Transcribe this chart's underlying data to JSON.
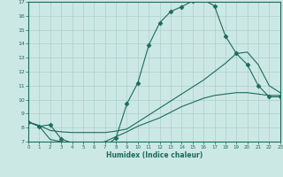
{
  "xlabel": "Humidex (Indice chaleur)",
  "bg_color": "#cce8e5",
  "grid_color": "#aacfcc",
  "line_color": "#1a6b5a",
  "x_min": 0,
  "x_max": 23,
  "y_min": 7,
  "y_max": 17,
  "curve1_x": [
    0,
    1,
    2,
    3,
    4,
    5,
    6,
    7,
    8,
    9,
    10,
    11,
    12,
    13,
    14,
    15,
    16,
    17,
    18,
    19,
    20,
    21,
    22,
    23
  ],
  "curve1_y": [
    8.4,
    8.1,
    8.2,
    7.2,
    6.9,
    6.85,
    6.8,
    6.65,
    7.25,
    9.7,
    11.2,
    13.9,
    15.5,
    16.3,
    16.65,
    17.05,
    17.15,
    16.7,
    14.55,
    13.3,
    12.5,
    11.0,
    10.2,
    10.2
  ],
  "curve2_x": [
    0,
    1,
    2,
    3,
    4,
    5,
    6,
    7,
    8,
    9,
    10,
    11,
    12,
    13,
    14,
    15,
    16,
    17,
    18,
    19,
    20,
    21,
    22,
    23
  ],
  "curve2_y": [
    8.4,
    8.15,
    7.8,
    7.7,
    7.65,
    7.65,
    7.65,
    7.65,
    7.75,
    7.9,
    8.4,
    8.9,
    9.4,
    9.9,
    10.4,
    10.9,
    11.4,
    12.0,
    12.6,
    13.3,
    13.4,
    12.5,
    11.0,
    10.5
  ],
  "curve3_x": [
    0,
    1,
    2,
    3,
    4,
    5,
    6,
    7,
    8,
    9,
    10,
    11,
    12,
    13,
    14,
    15,
    16,
    17,
    18,
    19,
    20,
    21,
    22,
    23
  ],
  "curve3_y": [
    8.4,
    8.1,
    7.15,
    7.0,
    6.9,
    6.85,
    6.8,
    7.0,
    7.35,
    7.7,
    8.1,
    8.4,
    8.7,
    9.1,
    9.5,
    9.8,
    10.1,
    10.3,
    10.4,
    10.5,
    10.5,
    10.4,
    10.3,
    10.3
  ]
}
